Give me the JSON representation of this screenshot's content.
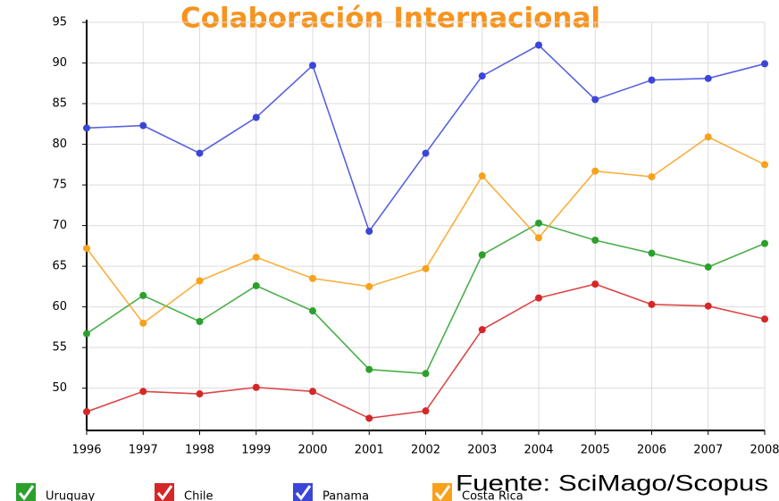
{
  "chart_data": {
    "type": "line",
    "title": "Colaboración Internacional",
    "source": "Fuente: SciMago/Scopus",
    "categories": [
      "1996",
      "1997",
      "1998",
      "1999",
      "2000",
      "2001",
      "2002",
      "2003",
      "2004",
      "2005",
      "2006",
      "2007",
      "2008"
    ],
    "series": [
      {
        "name": "Uruguay",
        "color": "#2ca02c",
        "values": [
          56.7,
          61.4,
          58.2,
          62.6,
          59.5,
          52.3,
          51.8,
          66.4,
          70.3,
          68.2,
          66.6,
          64.9,
          67.8
        ]
      },
      {
        "name": "Chile",
        "color": "#d62728",
        "values": [
          47.1,
          49.6,
          49.3,
          50.1,
          49.6,
          46.3,
          47.2,
          57.2,
          61.1,
          62.8,
          60.3,
          60.1,
          58.5
        ]
      },
      {
        "name": "Panama",
        "color": "#3b46d8",
        "values": [
          82.0,
          82.3,
          78.9,
          83.3,
          89.7,
          69.3,
          78.9,
          88.4,
          92.2,
          85.5,
          87.9,
          88.1,
          89.9
        ]
      },
      {
        "name": "Costa Rica",
        "color": "#f9a11b",
        "values": [
          67.2,
          58.0,
          63.2,
          66.1,
          63.5,
          62.5,
          64.7,
          76.1,
          68.5,
          76.7,
          76.0,
          80.9,
          77.5
        ]
      }
    ],
    "ylim": [
      44.8,
      95
    ],
    "yticks": [
      50,
      55,
      60,
      65,
      70,
      75,
      80,
      85,
      90,
      95
    ],
    "grid": true,
    "legend": "bottom"
  }
}
